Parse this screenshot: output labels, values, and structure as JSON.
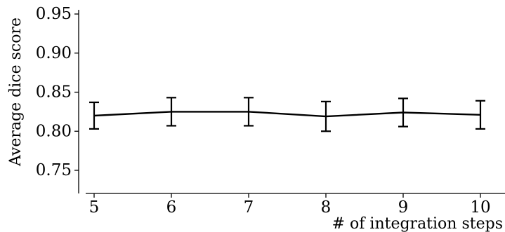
{
  "chart_data": {
    "type": "line",
    "xlabel": "# of integration steps",
    "ylabel": "Average dice score",
    "x": [
      5,
      6,
      7,
      8,
      9,
      10
    ],
    "xticks": [
      "5",
      "6",
      "7",
      "8",
      "9",
      "10"
    ],
    "yticks": [
      "0.75",
      "0.80",
      "0.85",
      "0.90",
      "0.95"
    ],
    "ylim": [
      0.72,
      0.96
    ],
    "xlim": [
      4.6,
      10.3
    ],
    "grid": false,
    "series": [
      {
        "values": [
          0.82,
          0.825,
          0.825,
          0.819,
          0.824,
          0.821
        ],
        "error": [
          0.017,
          0.018,
          0.018,
          0.019,
          0.018,
          0.018
        ],
        "color": "#000000"
      }
    ]
  }
}
